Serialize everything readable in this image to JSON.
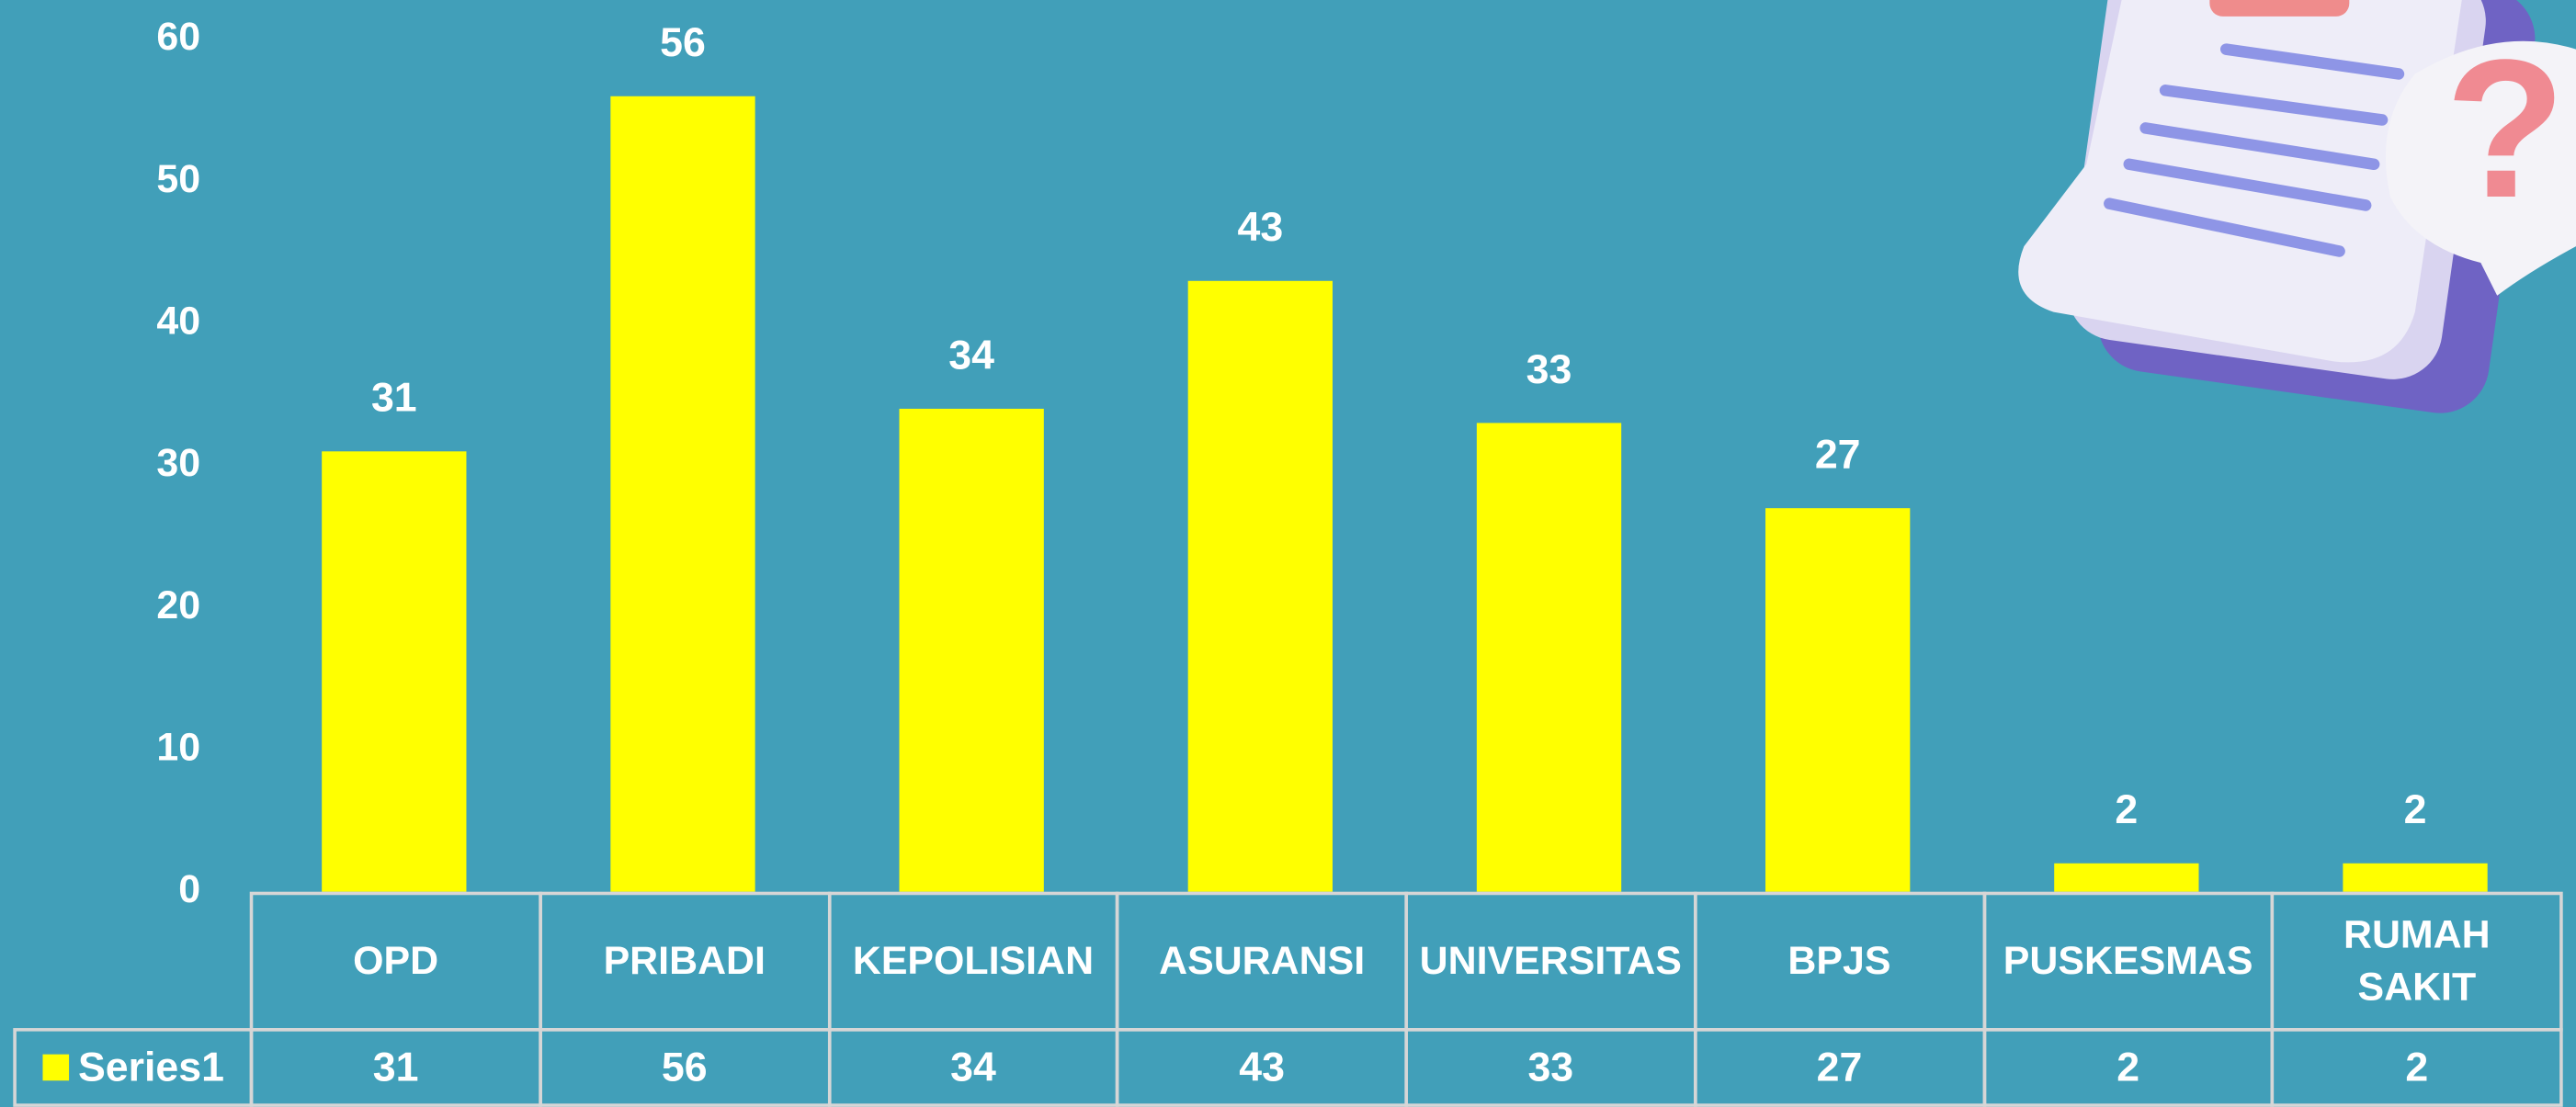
{
  "chart_data": {
    "type": "bar",
    "categories": [
      "OPD",
      "PRIBADI",
      "KEPOLISIAN",
      "ASURANSI",
      "UNIVERSITAS",
      "BPJS",
      "PUSKESMAS",
      "RUMAH SAKIT"
    ],
    "series": [
      {
        "name": "Series1",
        "color": "#ffff00",
        "values": [
          31,
          56,
          34,
          43,
          33,
          27,
          2,
          2
        ]
      }
    ],
    "ylim": [
      0,
      60
    ],
    "yticks": [
      0,
      10,
      20,
      30,
      40,
      50,
      60
    ],
    "grid": false,
    "data_table": true
  }
}
